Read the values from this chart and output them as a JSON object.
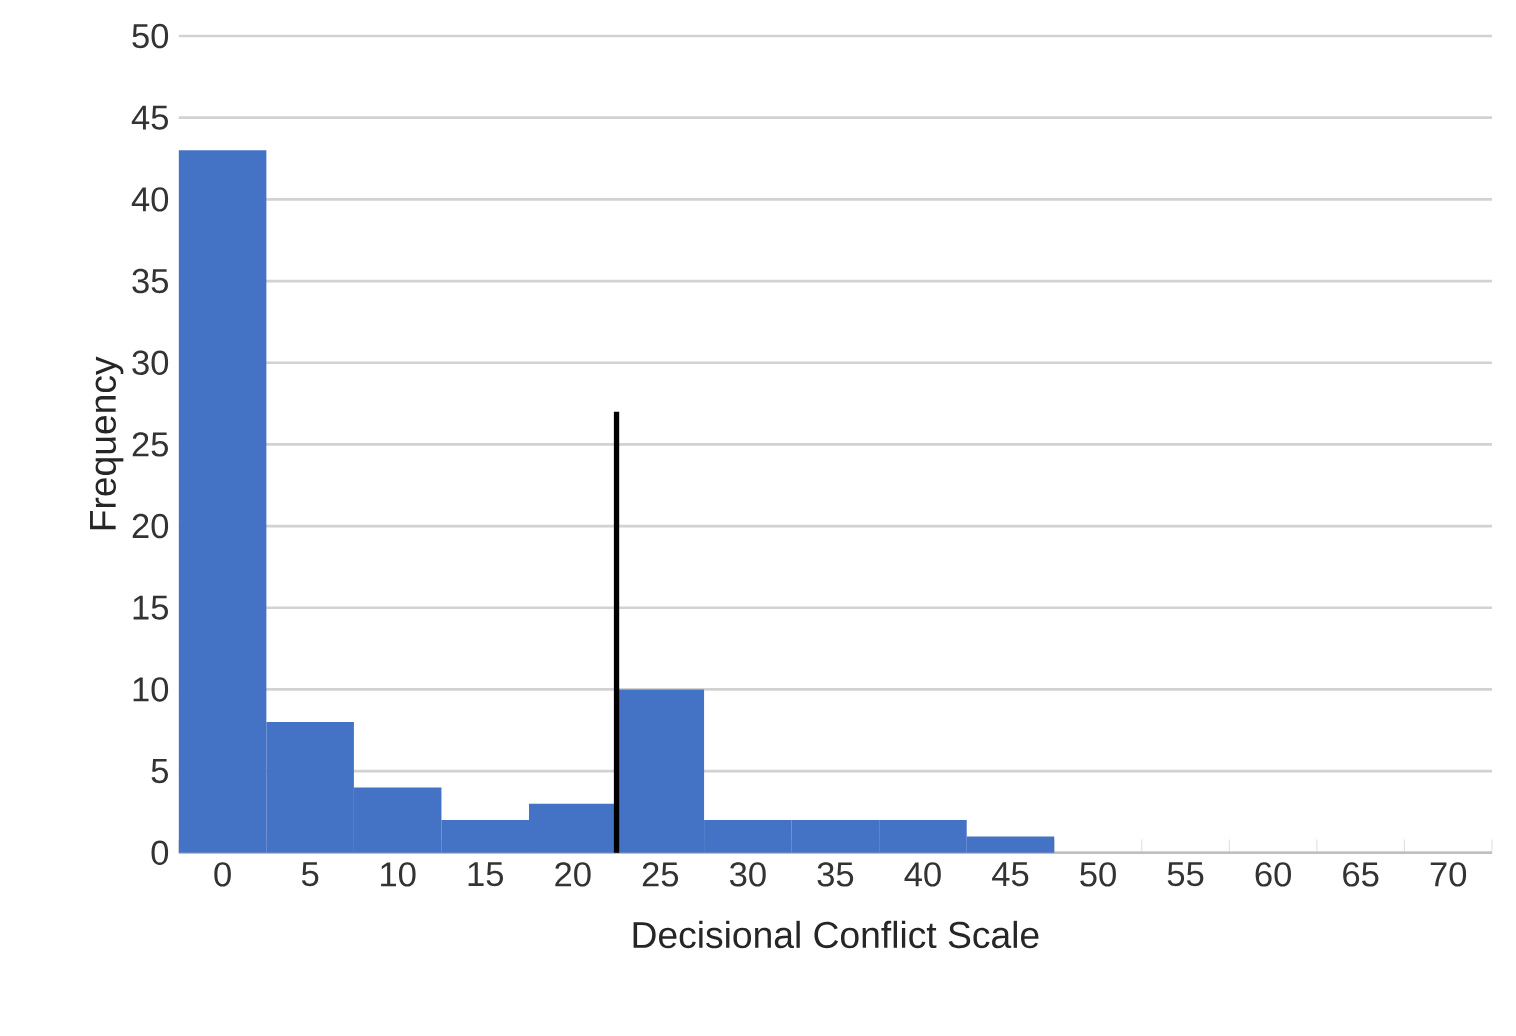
{
  "chart_data": {
    "type": "histogram",
    "xlabel": "Decisional Conflict Scale",
    "ylabel": "Frequency",
    "bins": [
      -2.5,
      2.5,
      7.5,
      12.5,
      17.5,
      22.5,
      27.5,
      32.5,
      37.5,
      42.5,
      47.5,
      52.5,
      57.5,
      62.5,
      67.5,
      72.5
    ],
    "values": [
      43,
      8,
      4,
      2,
      3,
      10,
      2,
      2,
      2,
      1,
      0,
      0,
      0,
      0,
      0
    ],
    "color": "#4472c4",
    "series": [
      {
        "type": "line",
        "x": [
          22.5,
          22.5
        ],
        "values": [
          0,
          27
        ],
        "color": "#000000"
      }
    ],
    "xlim": [
      -2.5,
      72.5
    ],
    "xticks": [
      0,
      5,
      10,
      15,
      20,
      25,
      30,
      35,
      40,
      45,
      50,
      55,
      60,
      65,
      70
    ],
    "ylim": [
      0,
      50
    ],
    "yticks": [
      0,
      5,
      10,
      15,
      20,
      25,
      30,
      35,
      40,
      45,
      50
    ],
    "grid": "y"
  }
}
